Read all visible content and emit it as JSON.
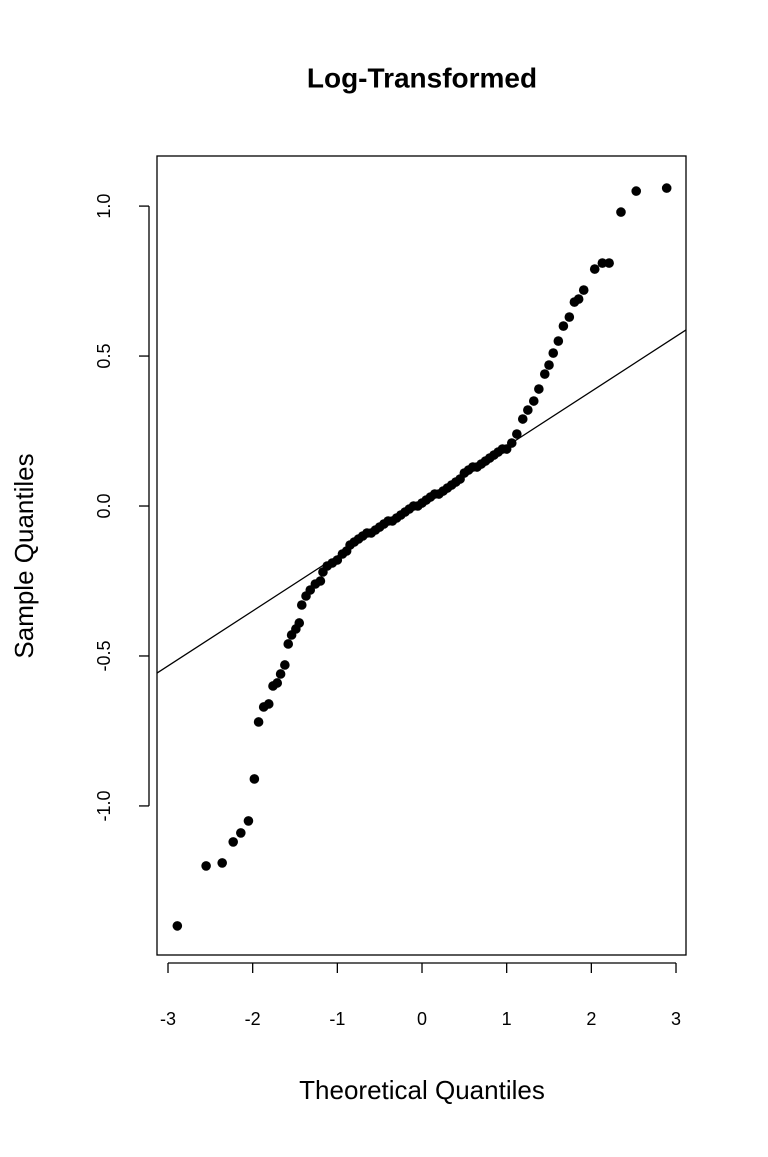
{
  "chart_data": {
    "type": "scatter",
    "title": "Log-Transformed",
    "xlabel": "Theoretical Quantiles",
    "ylabel": "Sample Quantiles",
    "xlim": [
      -3.13,
      3.118
    ],
    "ylim": [
      -1.497,
      1.167
    ],
    "xticks": [
      -3,
      -2,
      -1,
      0,
      1,
      2,
      3
    ],
    "yticks": [
      {
        "value": -1,
        "label": "-1.0"
      },
      {
        "value": -0.5,
        "label": "-0.5"
      },
      {
        "value": 0,
        "label": "0.0"
      },
      {
        "value": 0.5,
        "label": "0.5"
      },
      {
        "value": 1,
        "label": "1.0"
      }
    ],
    "series": [
      {
        "name": "sample",
        "color": "#000000",
        "x": [
          -2.89,
          -2.55,
          -2.36,
          -2.23,
          -2.14,
          -2.05,
          -1.98,
          -1.93,
          -1.87,
          -1.81,
          -1.76,
          -1.71,
          -1.67,
          -1.62,
          -1.58,
          -1.54,
          -1.49,
          -1.45,
          -1.42,
          -1.37,
          -1.32,
          -1.26,
          -1.2,
          -1.17,
          -1.12,
          -1.06,
          -1.0,
          -0.94,
          -0.89,
          -0.85,
          -0.8,
          -0.75,
          -0.7,
          -0.65,
          -0.6,
          -0.55,
          -0.5,
          -0.45,
          -0.4,
          -0.35,
          -0.3,
          -0.25,
          -0.2,
          -0.15,
          -0.1,
          -0.05,
          0,
          0.05,
          0.1,
          0.15,
          0.2,
          0.25,
          0.3,
          0.35,
          0.4,
          0.45,
          0.5,
          0.55,
          0.6,
          0.65,
          0.7,
          0.75,
          0.8,
          0.85,
          0.9,
          0.95,
          1.0,
          1.06,
          1.12,
          1.19,
          1.25,
          1.32,
          1.38,
          1.45,
          1.5,
          1.55,
          1.61,
          1.67,
          1.74,
          1.8,
          1.85,
          1.91,
          2.04,
          2.13,
          2.21,
          2.35,
          2.53,
          2.89
        ],
        "values": [
          -1.4,
          -1.2,
          -1.19,
          -1.12,
          -1.09,
          -1.05,
          -0.91,
          -0.72,
          -0.67,
          -0.66,
          -0.6,
          -0.59,
          -0.56,
          -0.53,
          -0.46,
          -0.43,
          -0.41,
          -0.39,
          -0.33,
          -0.3,
          -0.28,
          -0.26,
          -0.25,
          -0.22,
          -0.2,
          -0.19,
          -0.18,
          -0.16,
          -0.15,
          -0.13,
          -0.12,
          -0.11,
          -0.1,
          -0.09,
          -0.09,
          -0.08,
          -0.07,
          -0.06,
          -0.05,
          -0.05,
          -0.04,
          -0.03,
          -0.02,
          -0.01,
          0.0,
          0.0,
          0.01,
          0.02,
          0.03,
          0.04,
          0.04,
          0.05,
          0.06,
          0.07,
          0.08,
          0.09,
          0.11,
          0.12,
          0.13,
          0.13,
          0.14,
          0.15,
          0.16,
          0.17,
          0.18,
          0.19,
          0.19,
          0.21,
          0.24,
          0.29,
          0.32,
          0.35,
          0.39,
          0.44,
          0.47,
          0.51,
          0.55,
          0.6,
          0.63,
          0.68,
          0.69,
          0.72,
          0.79,
          0.81,
          0.81,
          0.98,
          1.05,
          1.06
        ]
      },
      {
        "name": "qqline",
        "color": "#000000",
        "x": [
          -3.13,
          3.118
        ],
        "values": [
          -0.557,
          0.587
        ]
      }
    ]
  }
}
